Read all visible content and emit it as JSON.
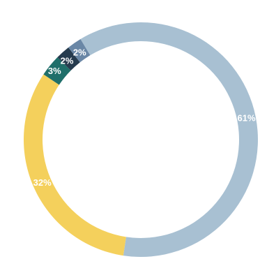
{
  "chart_data": {
    "type": "donut",
    "title": "",
    "slices": [
      {
        "label": "61%",
        "value": 61,
        "color": "#a8c0d2"
      },
      {
        "label": "32%",
        "value": 32,
        "color": "#f4d05c"
      },
      {
        "label": "3%",
        "value": 3,
        "color": "#1f6f6a"
      },
      {
        "label": "2%",
        "value": 2,
        "color": "#263b4e"
      },
      {
        "label": "2%",
        "value": 2,
        "color": "#6a87a6"
      }
    ],
    "start": "top, clockwise from about 11 o'clock"
  }
}
